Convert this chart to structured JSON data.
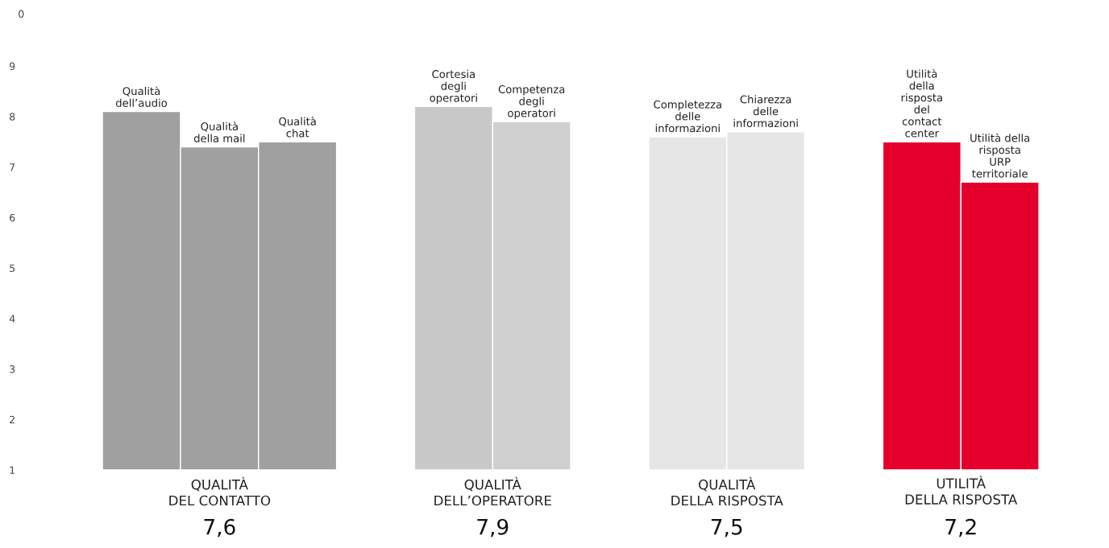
{
  "chart_data": {
    "type": "bar",
    "categories": [
      "Qualità\ndell’audio",
      "Qualità\ndella mail",
      "Qualità\nchat",
      null,
      "Cortesia\ndegli\noperatori",
      "Competenza\ndegli\noperatori",
      null,
      "Completezza\ndelle\ninformazioni",
      "Chiarezza\ndelle\ninformazioni",
      null,
      "Utilità\ndella\nrisposta\ndel\ncontact\ncenter",
      "Utilità della\nrisposta\nURP\nterritoriale"
    ],
    "values": [
      8.1,
      7.4,
      7.5,
      null,
      8.2,
      7.9,
      null,
      7.6,
      7.7,
      null,
      7.5,
      6.7
    ],
    "colors": [
      "#a0a0a0",
      "#a0a0a0",
      "#a0a0a0",
      null,
      "#c8c8c8",
      "#d0d0d0",
      null,
      "#e6e6e6",
      "#e6e6e6",
      null,
      "#e4002b",
      "#e4002b"
    ],
    "ylim": [
      1,
      9
    ],
    "yticks": [
      1,
      2,
      3,
      4,
      5,
      6,
      7,
      8,
      9
    ],
    "grid": false,
    "annotations": [
      "0",
      "QUALITÀ\nDEL CONTATTO",
      "7,6",
      "QUALITÀ\nDELL’OPERATORE",
      "7,9",
      "QUALITÀ\nDELLA RISPOSTA",
      "7,5",
      "UTILITÀ\nDELLA RISPOSTA",
      "7,2"
    ]
  }
}
